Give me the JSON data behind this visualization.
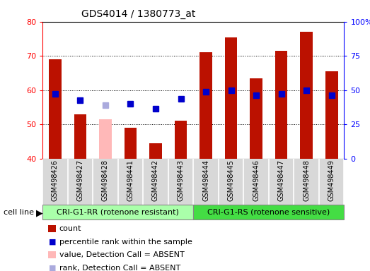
{
  "title": "GDS4014 / 1380773_at",
  "samples": [
    "GSM498426",
    "GSM498427",
    "GSM498428",
    "GSM498441",
    "GSM498442",
    "GSM498443",
    "GSM498444",
    "GSM498445",
    "GSM498446",
    "GSM498447",
    "GSM498448",
    "GSM498449"
  ],
  "counts": [
    69,
    53,
    51.5,
    49,
    44.5,
    51,
    71,
    75.5,
    63.5,
    71.5,
    77,
    65.5
  ],
  "ranks": [
    59,
    57,
    55.5,
    56,
    54.5,
    57.5,
    59.5,
    60,
    58.5,
    59,
    60,
    58.5
  ],
  "absent_flags": [
    false,
    false,
    true,
    false,
    false,
    false,
    false,
    false,
    false,
    false,
    false,
    false
  ],
  "group1_label": "CRI-G1-RR (rotenone resistant)",
  "group2_label": "CRI-G1-RS (rotenone sensitive)",
  "group1_count": 6,
  "group2_count": 6,
  "ylim_left": [
    40,
    80
  ],
  "ylim_right": [
    0,
    100
  ],
  "yticks_left": [
    40,
    50,
    60,
    70,
    80
  ],
  "yticks_right": [
    0,
    25,
    50,
    75,
    100
  ],
  "ytick_labels_right": [
    "0",
    "25",
    "50",
    "75",
    "100%"
  ],
  "bar_color_normal": "#BB1100",
  "bar_color_absent": "#FFB8B8",
  "rank_color_normal": "#0000CC",
  "rank_color_absent": "#AAAADD",
  "group1_bg": "#AAFFAA",
  "group2_bg": "#44DD44",
  "bar_width": 0.5,
  "rank_marker_size": 6,
  "legend_items": [
    {
      "label": "count",
      "color": "#BB1100",
      "type": "bar"
    },
    {
      "label": "percentile rank within the sample",
      "color": "#0000CC",
      "type": "square"
    },
    {
      "label": "value, Detection Call = ABSENT",
      "color": "#FFB8B8",
      "type": "bar"
    },
    {
      "label": "rank, Detection Call = ABSENT",
      "color": "#AAAADD",
      "type": "square"
    }
  ]
}
